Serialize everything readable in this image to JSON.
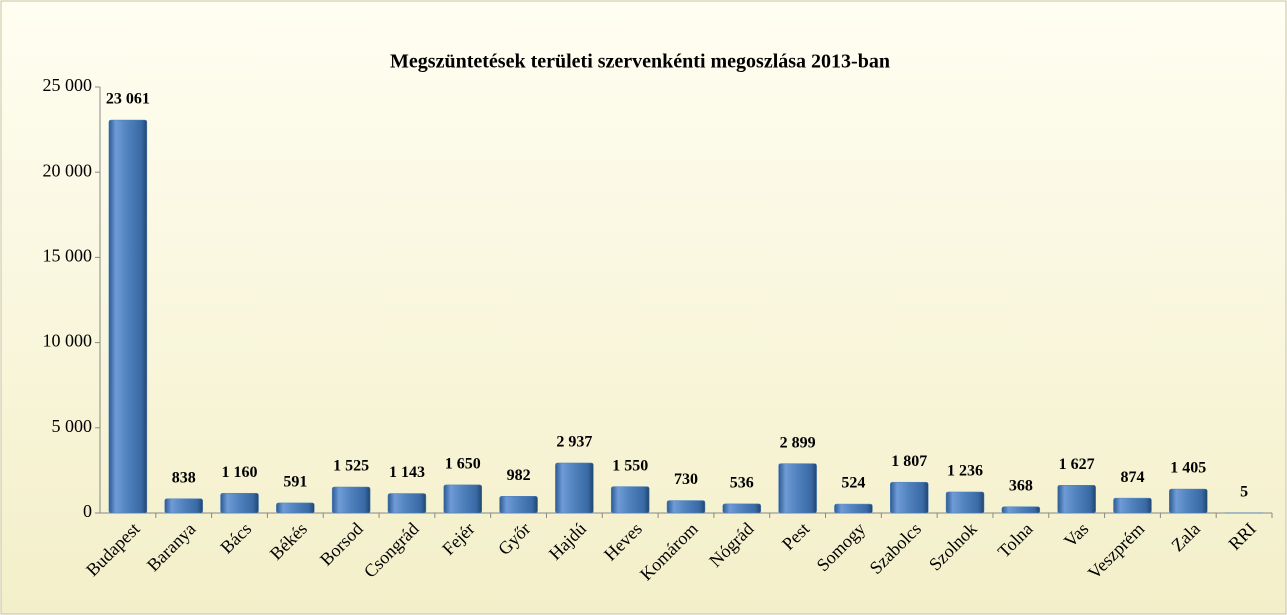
{
  "chart_data": {
    "type": "bar",
    "title": "Megszüntetések területi szervenkénti megoszlása 2013-ban",
    "categories": [
      "Budapest",
      "Baranya",
      "Bács",
      "Békés",
      "Borsod",
      "Csongrád",
      "Fejér",
      "Győr",
      "Hajdú",
      "Heves",
      "Komárom",
      "Nógrád",
      "Pest",
      "Somogy",
      "Szabolcs",
      "Szolnok",
      "Tolna",
      "Vas",
      "Veszprém",
      "Zala",
      "RRI"
    ],
    "values": [
      23061,
      838,
      1160,
      591,
      1525,
      1143,
      1650,
      982,
      2937,
      1550,
      730,
      536,
      2899,
      524,
      1807,
      1236,
      368,
      1627,
      874,
      1405,
      5
    ],
    "value_labels": [
      "23 061",
      "838",
      "1 160",
      "591",
      "1 525",
      "1 143",
      "1 650",
      "982",
      "2 937",
      "1 550",
      "730",
      "536",
      "2 899",
      "524",
      "1 807",
      "1 236",
      "368",
      "1 627",
      "874",
      "1 405",
      "5"
    ],
    "color": "#4f81bd",
    "ylim": [
      0,
      25000
    ],
    "yticks": [
      0,
      {
        "value": 5000,
        "label": "5 000"
      },
      {
        "value": 10000,
        "label": "10 000"
      },
      {
        "value": 15000,
        "label": "15 000"
      },
      {
        "value": 20000,
        "label": "20 000"
      },
      {
        "value": 25000,
        "label": "25 000"
      }
    ],
    "grid": false
  }
}
